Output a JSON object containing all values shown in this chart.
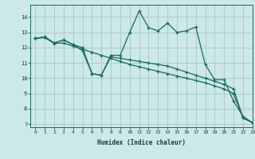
{
  "xlabel": "Humidex (Indice chaleur)",
  "background_color": "#cce8e8",
  "grid_color": "#aacccc",
  "line_color": "#1a6b5a",
  "xlim": [
    -0.5,
    23
  ],
  "ylim": [
    6.8,
    14.8
  ],
  "yticks": [
    7,
    8,
    9,
    10,
    11,
    12,
    13,
    14
  ],
  "xticks": [
    0,
    1,
    2,
    3,
    4,
    5,
    6,
    7,
    8,
    9,
    10,
    11,
    12,
    13,
    14,
    15,
    16,
    17,
    18,
    19,
    20,
    21,
    22,
    23
  ],
  "series_volatile_x": [
    0,
    1,
    2,
    3,
    4,
    5,
    6,
    7,
    8,
    9,
    10,
    11,
    12,
    13,
    14,
    15,
    16,
    17,
    18,
    19,
    20,
    21,
    22,
    23
  ],
  "series_volatile_y": [
    12.6,
    12.7,
    12.3,
    12.5,
    12.2,
    11.8,
    10.3,
    10.2,
    11.5,
    11.5,
    13.0,
    14.4,
    13.3,
    13.1,
    13.6,
    13.0,
    13.1,
    13.35,
    10.9,
    9.9,
    9.9,
    8.5,
    7.5,
    7.1
  ],
  "series_linear_x": [
    0,
    1,
    2,
    3,
    4,
    5,
    6,
    7,
    8,
    9,
    10,
    11,
    12,
    13,
    14,
    15,
    16,
    17,
    18,
    19,
    20,
    21,
    22,
    23
  ],
  "series_linear_y": [
    12.6,
    12.65,
    12.28,
    12.3,
    12.1,
    11.9,
    11.7,
    11.5,
    11.3,
    11.1,
    10.9,
    10.75,
    10.6,
    10.45,
    10.3,
    10.15,
    10.0,
    9.85,
    9.7,
    9.5,
    9.3,
    9.0,
    7.4,
    7.1
  ],
  "series_mid_x": [
    0,
    1,
    2,
    3,
    4,
    5,
    6,
    7,
    8,
    9,
    10,
    11,
    12,
    13,
    14,
    15,
    16,
    17,
    18,
    19,
    20,
    21,
    22,
    23
  ],
  "series_mid_y": [
    12.6,
    12.7,
    12.3,
    12.5,
    12.2,
    12.0,
    10.3,
    10.2,
    11.4,
    11.3,
    11.2,
    11.1,
    11.0,
    10.9,
    10.8,
    10.6,
    10.4,
    10.2,
    10.0,
    9.8,
    9.6,
    9.3,
    7.4,
    7.1
  ]
}
